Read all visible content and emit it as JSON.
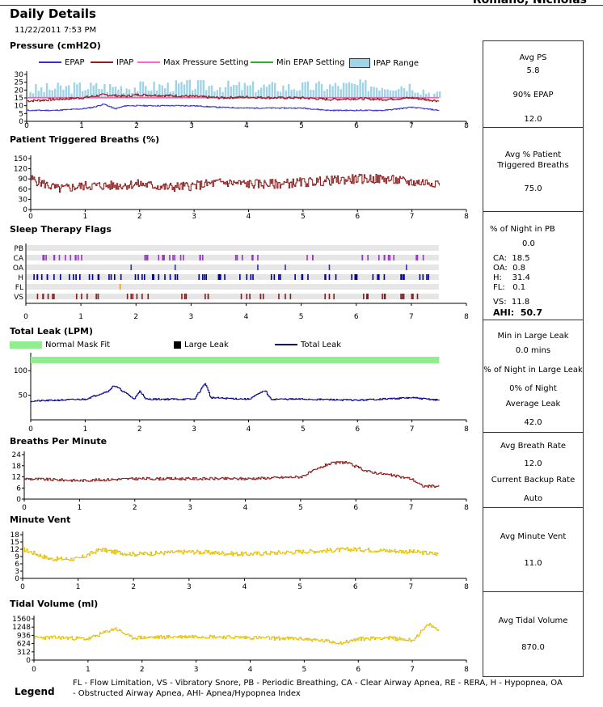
{
  "header": {
    "title": "Daily Details",
    "cut_name": "Romano, Nicholas",
    "date": "11/22/2011 7:53 PM"
  },
  "colors": {
    "epap": "#3333cc",
    "ipap": "#8b2020",
    "max_pressure": "#ff66cc",
    "min_epap": "#33aa33",
    "ipap_range": "#9fd4e6",
    "breaths": "#8b1a1a",
    "flag_ca": "#9933cc",
    "flag_oa": "#3333aa",
    "flag_h": "#000099",
    "flag_fl": "#ff9900",
    "flag_vs": "#8b1a1a",
    "leak": "#000088",
    "normal_fit": "#90ee90",
    "large_leak": "#000000",
    "vent": "#e6c000"
  },
  "charts": {
    "pressure": {
      "title": "Pressure (cmH2O)",
      "legend": [
        "EPAP",
        "IPAP",
        "Max Pressure Setting",
        "Min EPAP Setting",
        "IPAP Range"
      ],
      "yticks": [
        "30",
        "25",
        "20",
        "15",
        "10",
        "5",
        "0"
      ]
    },
    "ptb": {
      "title": "Patient Triggered Breaths (%)",
      "yticks": [
        "150",
        "120",
        "90",
        "60",
        "30",
        "0"
      ]
    },
    "flags": {
      "title": "Sleep Therapy Flags",
      "rows": [
        "PB",
        "CA",
        "OA",
        "H",
        "FL",
        "VS"
      ]
    },
    "leak": {
      "title": "Total Leak (LPM)",
      "legend": [
        "Normal Mask Fit",
        "Large Leak",
        "Total Leak"
      ],
      "yticks": [
        "100",
        "50"
      ]
    },
    "bpm": {
      "title": "Breaths Per Minute",
      "yticks": [
        "24",
        "18",
        "12",
        "6",
        "0"
      ]
    },
    "mv": {
      "title": "Minute Vent",
      "yticks": [
        "18",
        "15",
        "12",
        "9",
        "6",
        "3",
        "0"
      ]
    },
    "tv": {
      "title": "Tidal Volume (ml)",
      "yticks": [
        "1560",
        "1248",
        "936",
        "624",
        "312",
        "0"
      ]
    },
    "xticks": [
      "0",
      "1",
      "2",
      "3",
      "4",
      "5",
      "6",
      "7",
      "8"
    ]
  },
  "chart_data": [
    {
      "type": "line",
      "title": "Pressure (cmH2O)",
      "ylim": [
        0,
        30
      ],
      "xlim": [
        0,
        8
      ],
      "series": [
        {
          "name": "EPAP",
          "x": [
            0,
            0.5,
            1,
            1.2,
            1.4,
            1.6,
            1.8,
            2,
            3,
            3.5,
            4,
            4.5,
            5,
            5.5,
            6,
            6.5,
            7,
            7.5
          ],
          "y": [
            7,
            7,
            8,
            9,
            11,
            8,
            10,
            10,
            10,
            9,
            8.5,
            8.5,
            8.5,
            7,
            7,
            7,
            9,
            7
          ]
        },
        {
          "name": "IPAP",
          "x": [
            0,
            0.5,
            1,
            1.4,
            1.8,
            2,
            3,
            3.5,
            4,
            4.5,
            5,
            5.5,
            6,
            6.5,
            7,
            7.5
          ],
          "y": [
            13,
            14,
            15,
            17,
            16,
            17,
            16,
            15,
            15.5,
            15,
            15,
            14,
            14.5,
            14,
            15,
            13
          ]
        },
        {
          "name": "Max Pressure Setting",
          "x": [
            0,
            7.5
          ],
          "y": [
            15,
            15
          ]
        },
        {
          "name": "Min EPAP Setting",
          "x": [
            0,
            7.5
          ],
          "y": [
            15,
            15
          ]
        },
        {
          "name": "IPAP Range",
          "x": [
            0,
            1,
            2,
            3,
            4,
            5,
            6,
            7,
            7.5
          ],
          "y": [
            20,
            22,
            22,
            23,
            22,
            22,
            23,
            23,
            16
          ]
        }
      ]
    },
    {
      "type": "line",
      "title": "Patient Triggered Breaths (%)",
      "ylim": [
        0,
        150
      ],
      "xlim": [
        0,
        8
      ],
      "series": [
        {
          "x": [
            0,
            0.5,
            1,
            1.5,
            2,
            2.5,
            3,
            3.5,
            4,
            4.5,
            5,
            5.5,
            6,
            6.5,
            7,
            7.5
          ],
          "y": [
            90,
            60,
            70,
            70,
            75,
            65,
            70,
            80,
            75,
            75,
            80,
            85,
            90,
            90,
            80,
            80
          ]
        }
      ]
    },
    {
      "type": "scatter",
      "title": "Sleep Therapy Flags",
      "xlim": [
        0,
        8
      ],
      "categories": [
        "PB",
        "CA",
        "OA",
        "H",
        "FL",
        "VS"
      ],
      "series": [
        {
          "name": "CA",
          "x": [
            0.3,
            0.5,
            0.8,
            1,
            2.2,
            2.4,
            2.6,
            2.8,
            3.2,
            3.8,
            4.2,
            5.2,
            6.2,
            6.4,
            6.6,
            7.1
          ]
        },
        {
          "name": "OA",
          "x": [
            1.9,
            2.7,
            4.2,
            4.7,
            5.5,
            6.9
          ]
        },
        {
          "name": "H",
          "x": [
            0.2,
            0.5,
            0.9,
            1.2,
            1.6,
            2.1,
            2.4,
            2.7,
            3.2,
            3.6,
            4,
            4.5,
            5,
            5.5,
            6,
            6.4,
            6.8,
            7.2
          ]
        },
        {
          "name": "FL",
          "x": [
            1.7
          ]
        },
        {
          "name": "VS",
          "x": [
            0.2,
            0.5,
            1,
            1.3,
            1.9,
            2.1,
            2.9,
            3.3,
            4,
            4.3,
            4.7,
            5.5,
            6.2,
            6.5,
            6.8,
            7.1
          ]
        }
      ]
    },
    {
      "type": "line",
      "title": "Total Leak (LPM)",
      "ylim": [
        0,
        130
      ],
      "xlim": [
        0,
        8
      ],
      "series": [
        {
          "name": "Total Leak",
          "x": [
            0,
            1,
            1.45,
            1.5,
            1.6,
            1.9,
            2,
            2.1,
            3,
            3.2,
            3.3,
            4,
            4.3,
            4.4,
            5,
            6,
            7,
            7.5
          ],
          "y": [
            38,
            42,
            60,
            70,
            65,
            42,
            60,
            42,
            42,
            75,
            45,
            42,
            60,
            42,
            42,
            40,
            45,
            40
          ]
        }
      ]
    },
    {
      "type": "line",
      "title": "Breaths Per Minute",
      "ylim": [
        0,
        24
      ],
      "xlim": [
        0,
        8
      ],
      "series": [
        {
          "x": [
            0,
            1,
            2,
            3,
            4,
            5,
            5.5,
            5.8,
            6.2,
            7,
            7.2,
            7.5
          ],
          "y": [
            11,
            10,
            11,
            11,
            11,
            12,
            19,
            20,
            15,
            11,
            7,
            7
          ]
        }
      ]
    },
    {
      "type": "line",
      "title": "Minute Vent",
      "ylim": [
        0,
        18
      ],
      "xlim": [
        0,
        8
      ],
      "series": [
        {
          "x": [
            0,
            0.5,
            1,
            1.4,
            1.6,
            2,
            3,
            4,
            5,
            6,
            7,
            7.5
          ],
          "y": [
            12,
            8,
            8,
            12,
            11,
            10,
            11,
            10,
            11,
            12,
            11,
            10
          ]
        }
      ]
    },
    {
      "type": "line",
      "title": "Tidal Volume (ml)",
      "ylim": [
        0,
        1560
      ],
      "xlim": [
        0,
        8
      ],
      "series": [
        {
          "x": [
            0,
            0.5,
            1,
            1.5,
            1.8,
            2,
            3,
            4,
            5,
            5.7,
            6,
            6.5,
            7,
            7.3,
            7.5
          ],
          "y": [
            850,
            850,
            800,
            1200,
            850,
            850,
            900,
            850,
            800,
            650,
            800,
            850,
            750,
            1350,
            1100
          ]
        }
      ]
    }
  ],
  "stats": {
    "pressure": {
      "l1": "Avg PS",
      "v1": "5.8",
      "l2": "90% EPAP",
      "v2": "12.0"
    },
    "ptb": {
      "l1": "Avg % Patient",
      "l1b": "Triggered Breaths",
      "v1": "75.0"
    },
    "flags": {
      "l1": "% of Night in PB",
      "v1": "0.0",
      "ca": "CA:  18.5",
      "oa": "OA:  0.8",
      "h": "H:    31.4",
      "fl": "FL:   0.1",
      "vs": "VS:  11.8",
      "ahi": "AHI:  50.7"
    },
    "leak": {
      "l1": "Min in Large Leak",
      "v1": "0.0 mins",
      "l2": "% of Night in Large Leak",
      "v2": "0% of Night",
      "l3": "Average Leak",
      "v3": "42.0"
    },
    "bpm": {
      "l1": "Avg Breath Rate",
      "v1": "12.0",
      "l2": "Current Backup Rate",
      "v2": "Auto"
    },
    "mv": {
      "l1": "Avg Minute Vent",
      "v1": "11.0"
    },
    "tv": {
      "l1": "Avg Tidal Volume",
      "v1": "870.0"
    }
  },
  "legend": {
    "label": "Legend",
    "text": "FL - Flow Limitation, VS - Vibratory Snore, PB - Periodic Breathing, CA - Clear Airway Apnea, RE - RERA, H - Hypopnea, OA - Obstructed Airway Apnea, AHI- Apnea/Hypopnea Index"
  }
}
